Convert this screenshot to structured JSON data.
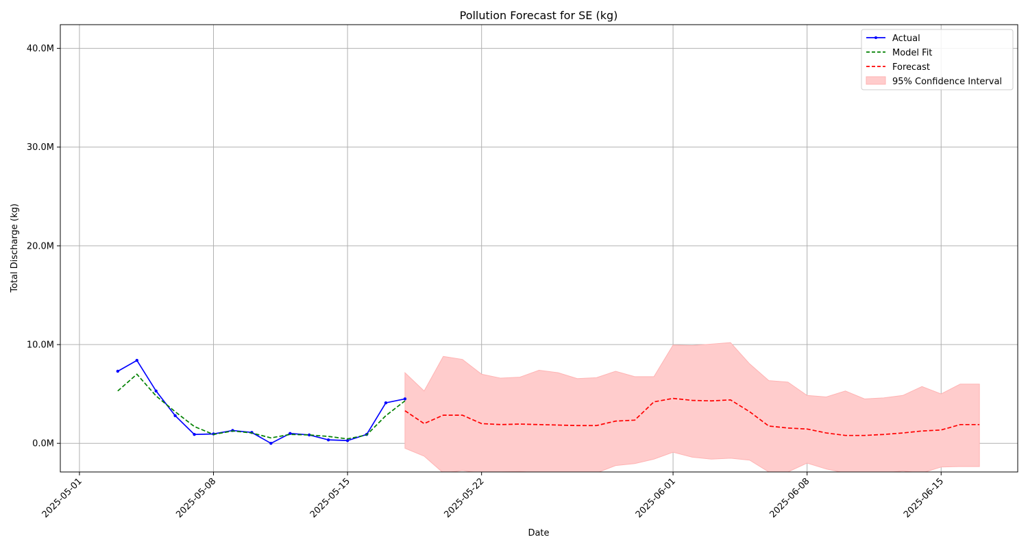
{
  "chart_data": {
    "type": "line",
    "title": "Pollution Forecast for SE (kg)",
    "xlabel": "Date",
    "ylabel": "Total Discharge (kg)",
    "x_ticks": [
      "2025-05-01",
      "2025-05-08",
      "2025-05-15",
      "2025-05-22",
      "2025-06-01",
      "2025-06-08",
      "2025-06-15"
    ],
    "y_ticks": [
      {
        "value": 0,
        "label": "0.0M"
      },
      {
        "value": 10000000,
        "label": "10.0M"
      },
      {
        "value": 20000000,
        "label": "20.0M"
      },
      {
        "value": 30000000,
        "label": "30.0M"
      },
      {
        "value": 40000000,
        "label": "40.0M"
      }
    ],
    "xlim": [
      "2025-04-30",
      "2025-06-19"
    ],
    "ylim": [
      -2900000,
      42400000
    ],
    "grid": true,
    "legend_position": "top-right",
    "legend": [
      "Actual",
      "Model Fit",
      "Forecast",
      "95% Confidence Interval"
    ],
    "colors": {
      "actual": "#0000ff",
      "fit": "#008000",
      "forecast": "#ff0000",
      "ci": "#ffcccc",
      "ci_edge": "#ffb3b3",
      "grid": "#b0b0b0"
    },
    "series": [
      {
        "name": "Actual",
        "x": [
          "2025-05-03",
          "2025-05-04",
          "2025-05-05",
          "2025-05-06",
          "2025-05-07",
          "2025-05-08",
          "2025-05-09",
          "2025-05-10",
          "2025-05-11",
          "2025-05-12",
          "2025-05-13",
          "2025-05-14",
          "2025-05-15",
          "2025-05-16",
          "2025-05-17",
          "2025-05-18"
        ],
        "values": [
          7300000,
          8400000,
          5300000,
          2800000,
          900000,
          950000,
          1300000,
          1100000,
          0,
          1000000,
          850000,
          350000,
          280000,
          900000,
          4100000,
          4500000
        ]
      },
      {
        "name": "Model Fit",
        "x": [
          "2025-05-03",
          "2025-05-04",
          "2025-05-05",
          "2025-05-06",
          "2025-05-07",
          "2025-05-08",
          "2025-05-09",
          "2025-05-10",
          "2025-05-11",
          "2025-05-12",
          "2025-05-13",
          "2025-05-14",
          "2025-05-15",
          "2025-05-16",
          "2025-05-17",
          "2025-05-18"
        ],
        "values": [
          5300000,
          7000000,
          4800000,
          3200000,
          1700000,
          900000,
          1250000,
          1050000,
          550000,
          900000,
          850000,
          700000,
          450000,
          850000,
          2800000,
          4300000
        ]
      },
      {
        "name": "Forecast",
        "x": [
          "2025-05-18",
          "2025-05-19",
          "2025-05-20",
          "2025-05-21",
          "2025-05-22",
          "2025-05-23",
          "2025-05-24",
          "2025-05-25",
          "2025-05-26",
          "2025-05-27",
          "2025-05-28",
          "2025-05-29",
          "2025-05-30",
          "2025-05-31",
          "2025-06-01",
          "2025-06-02",
          "2025-06-03",
          "2025-06-04",
          "2025-06-05",
          "2025-06-06",
          "2025-06-07",
          "2025-06-08",
          "2025-06-09",
          "2025-06-10",
          "2025-06-11",
          "2025-06-12",
          "2025-06-13",
          "2025-06-14",
          "2025-06-15",
          "2025-06-16",
          "2025-06-17"
        ],
        "values": [
          3300000,
          2000000,
          2850000,
          2850000,
          2000000,
          1900000,
          1950000,
          1900000,
          1850000,
          1800000,
          1800000,
          2250000,
          2350000,
          4200000,
          4550000,
          4350000,
          4300000,
          4400000,
          3200000,
          1750000,
          1550000,
          1450000,
          1050000,
          800000,
          800000,
          900000,
          1050000,
          1250000,
          1350000,
          1900000,
          1900000
        ]
      }
    ],
    "confidence_interval": {
      "name": "95% Confidence Interval",
      "x": [
        "2025-05-18",
        "2025-05-19",
        "2025-05-20",
        "2025-05-21",
        "2025-05-22",
        "2025-05-23",
        "2025-05-24",
        "2025-05-25",
        "2025-05-26",
        "2025-05-27",
        "2025-05-28",
        "2025-05-29",
        "2025-05-30",
        "2025-05-31",
        "2025-06-01",
        "2025-06-02",
        "2025-06-03",
        "2025-06-04",
        "2025-06-05",
        "2025-06-06",
        "2025-06-07",
        "2025-06-08",
        "2025-06-09",
        "2025-06-10",
        "2025-06-11",
        "2025-06-12",
        "2025-06-13",
        "2025-06-14",
        "2025-06-15",
        "2025-06-16",
        "2025-06-17"
      ],
      "upper": [
        7150000,
        5300000,
        8800000,
        8500000,
        7000000,
        6600000,
        6700000,
        7400000,
        7150000,
        6550000,
        6650000,
        7300000,
        6750000,
        6750000,
        9950000,
        9900000,
        10050000,
        10200000,
        8050000,
        6350000,
        6200000,
        4850000,
        4700000,
        5300000,
        4500000,
        4600000,
        4850000,
        5750000,
        5000000,
        6000000,
        6000000
      ],
      "lower": [
        -500000,
        -1300000,
        -3000000,
        -2750000,
        -3000000,
        -2900000,
        -2850000,
        -3000000,
        -3000000,
        -3000000,
        -3000000,
        -2250000,
        -2050000,
        -1600000,
        -900000,
        -1400000,
        -1600000,
        -1500000,
        -1700000,
        -2900000,
        -2900000,
        -2000000,
        -2600000,
        -3000000,
        -3000000,
        -3000000,
        -2800000,
        -3000000,
        -2400000,
        -2350000,
        -2350000
      ]
    }
  }
}
